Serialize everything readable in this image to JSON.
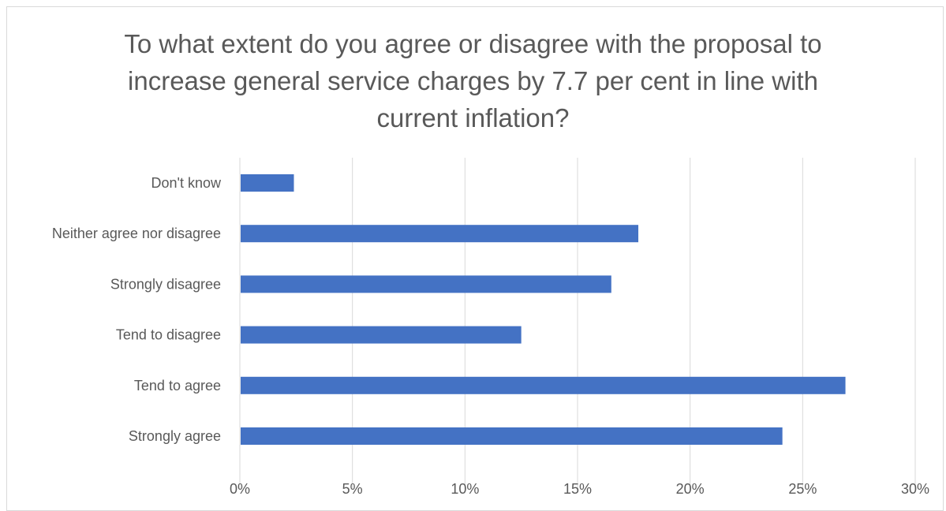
{
  "chart_data": {
    "type": "bar",
    "orientation": "horizontal",
    "title": "To what extent do you agree or disagree with the proposal to\nincrease general service charges by 7.7 per cent in line with\ncurrent inflation?",
    "categories": [
      "Don't know",
      "Neither agree nor disagree",
      "Strongly disagree",
      "Tend to disagree",
      "Tend to agree",
      "Strongly agree"
    ],
    "values": [
      2.4,
      17.7,
      16.5,
      12.5,
      26.9,
      24.1
    ],
    "xlim": [
      0,
      30
    ],
    "xticks": [
      "0%",
      "5%",
      "10%",
      "15%",
      "20%",
      "25%",
      "30%"
    ],
    "xtick_values": [
      0,
      5,
      10,
      15,
      20,
      25,
      30
    ],
    "grid": "vertical",
    "bar_color": "#4472C4",
    "grid_color": "#d9d9d9",
    "xlabel": "",
    "ylabel": ""
  }
}
